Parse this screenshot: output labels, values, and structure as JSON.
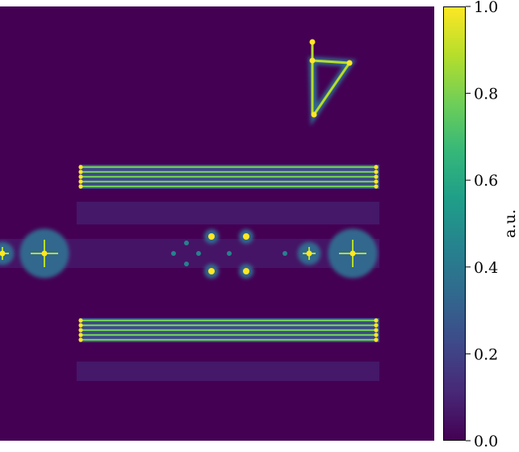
{
  "chart_data": {
    "type": "heatmap",
    "title": "",
    "colormap": "viridis",
    "colorbar": {
      "label": "a.u.",
      "range": [
        0.0,
        1.0
      ],
      "ticks": [
        0.0,
        0.2,
        0.4,
        0.6,
        0.8,
        1.0
      ],
      "tick_labels": [
        "0.0",
        "0.2",
        "0.4",
        "0.6",
        "0.8",
        "1.0"
      ]
    },
    "axes_visible": false,
    "features": [
      {
        "kind": "triangle-outline",
        "level": 0.85,
        "description": "bright triangular outline, upper right"
      },
      {
        "kind": "band",
        "level": 0.8,
        "description": "upper horizontal band of parallel bright lines"
      },
      {
        "kind": "cross-points",
        "level": 0.9,
        "description": "row of cross-shaped point clusters across the middle"
      },
      {
        "kind": "band",
        "level": 0.8,
        "description": "lower horizontal band of parallel bright lines"
      }
    ],
    "colors": {
      "background": "#440154",
      "low": "#440154",
      "mid": "#21918c",
      "high": "#fde725"
    }
  }
}
